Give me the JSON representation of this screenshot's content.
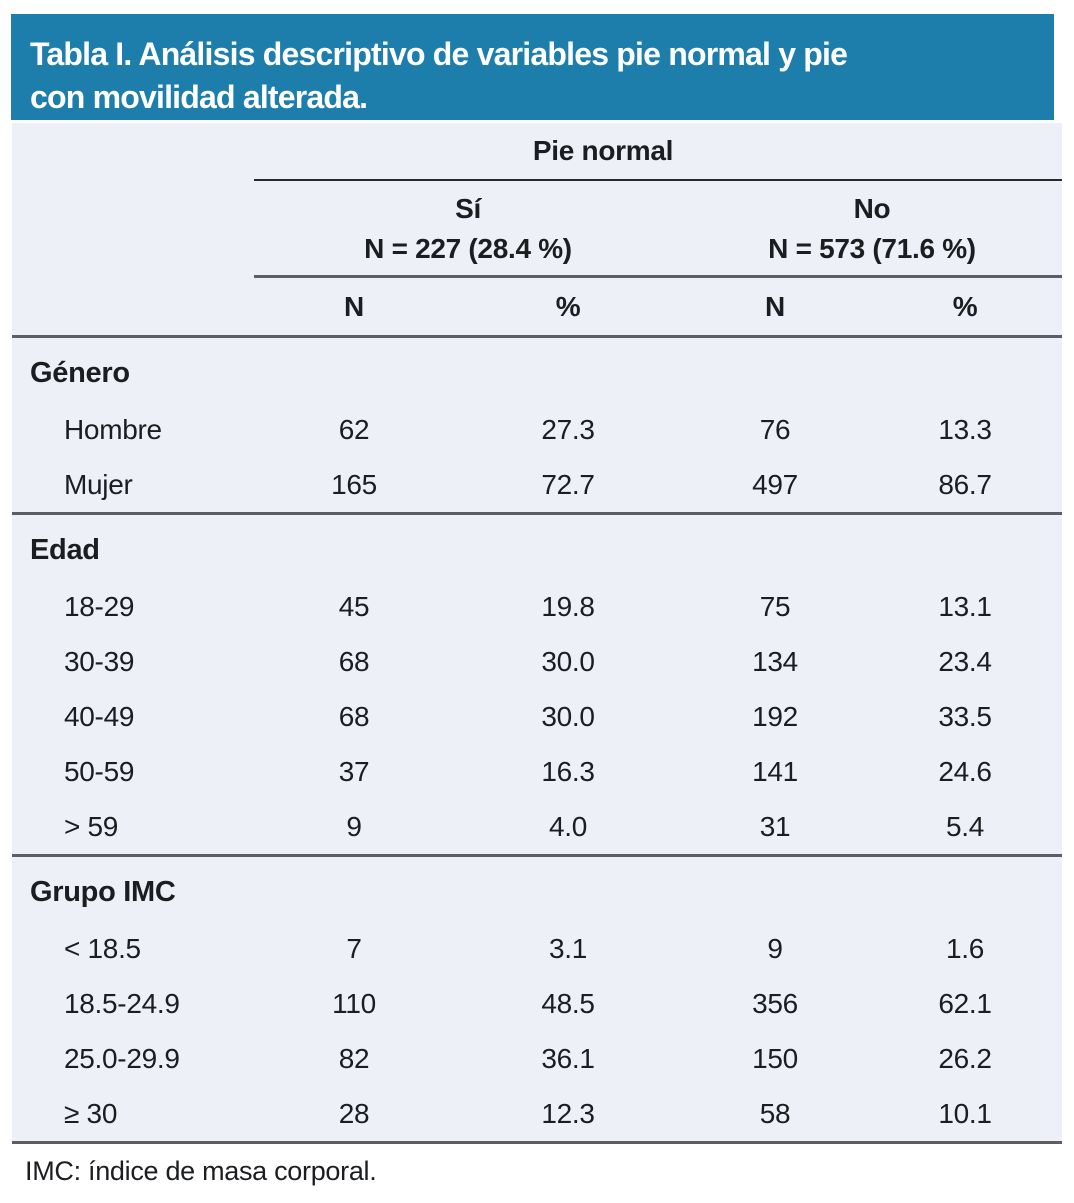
{
  "title": {
    "line1": "Tabla I. Análisis descriptivo de variables pie normal y pie",
    "line2": "con movilidad alterada."
  },
  "header": {
    "group_label": "Pie normal",
    "subgroups": [
      {
        "label": "Sí",
        "n_label": "N = 227 (28.4 %)"
      },
      {
        "label": "No",
        "n_label": "N = 573 (71.6 %)"
      }
    ],
    "columns": [
      "N",
      "%",
      "N",
      "%"
    ]
  },
  "sections": [
    {
      "label": "Género",
      "rows": [
        {
          "label": "Hombre",
          "values": [
            "62",
            "27.3",
            "76",
            "13.3"
          ]
        },
        {
          "label": "Mujer",
          "values": [
            "165",
            "72.7",
            "497",
            "86.7"
          ]
        }
      ]
    },
    {
      "label": "Edad",
      "rows": [
        {
          "label": "18-29",
          "values": [
            "45",
            "19.8",
            "75",
            "13.1"
          ]
        },
        {
          "label": "30-39",
          "values": [
            "68",
            "30.0",
            "134",
            "23.4"
          ]
        },
        {
          "label": "40-49",
          "values": [
            "68",
            "30.0",
            "192",
            "33.5"
          ]
        },
        {
          "label": "50-59",
          "values": [
            "37",
            "16.3",
            "141",
            "24.6"
          ]
        },
        {
          "label": "> 59",
          "values": [
            "9",
            "4.0",
            "31",
            "5.4"
          ]
        }
      ]
    },
    {
      "label": "Grupo IMC",
      "rows": [
        {
          "label": "< 18.5",
          "values": [
            "7",
            "3.1",
            "9",
            "1.6"
          ]
        },
        {
          "label": "18.5-24.9",
          "values": [
            "110",
            "48.5",
            "356",
            "62.1"
          ]
        },
        {
          "label": "25.0-29.9",
          "values": [
            "82",
            "36.1",
            "150",
            "26.2"
          ]
        },
        {
          "label": "≥ 30",
          "values": [
            "28",
            "12.3",
            "58",
            "10.1"
          ]
        }
      ]
    }
  ],
  "footnote": "IMC: índice de masa corporal.",
  "colors": {
    "banner_bg": "#1e7eab",
    "banner_text": "#ffffff",
    "table_bg": "#edf0f6",
    "text": "#1b1d20",
    "rule_dark": "#282a2c",
    "rule_gray": "#5b5f63"
  }
}
